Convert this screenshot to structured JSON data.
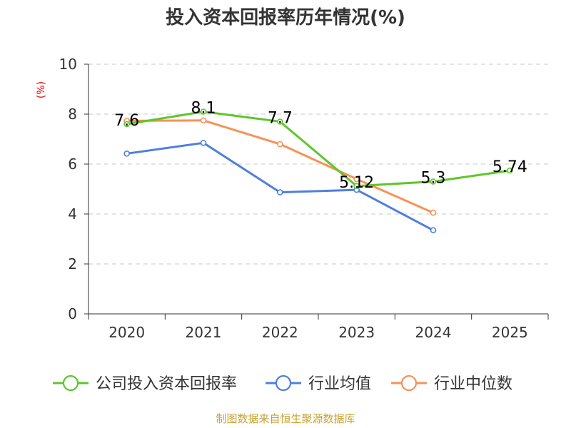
{
  "chart_data": {
    "type": "line",
    "title": "投入资本回报率历年情况(%)",
    "ylabel": "(%)",
    "xlabel": "",
    "categories": [
      "2020",
      "2021",
      "2022",
      "2023",
      "2024",
      "2025"
    ],
    "ylim": [
      0,
      10
    ],
    "yticks": [
      0,
      2,
      4,
      6,
      8,
      10
    ],
    "grid": true,
    "legend_position": "bottom",
    "series": [
      {
        "name": "公司投入资本回报率",
        "color": "#5ec62a",
        "values": [
          7.6,
          8.1,
          7.7,
          5.12,
          5.3,
          5.74
        ],
        "labels": [
          "7.6",
          "8.1",
          "7.7",
          "5.12",
          "5.3",
          "5.74"
        ]
      },
      {
        "name": "行业均值",
        "color": "#4f7fdc",
        "values": [
          6.42,
          6.85,
          4.87,
          4.97,
          3.35,
          null
        ]
      },
      {
        "name": "行业中位数",
        "color": "#f79257",
        "values": [
          7.73,
          7.75,
          6.8,
          5.4,
          4.05,
          null
        ]
      }
    ]
  },
  "footer": {
    "source": "制图数据来自恒生聚源数据库"
  }
}
